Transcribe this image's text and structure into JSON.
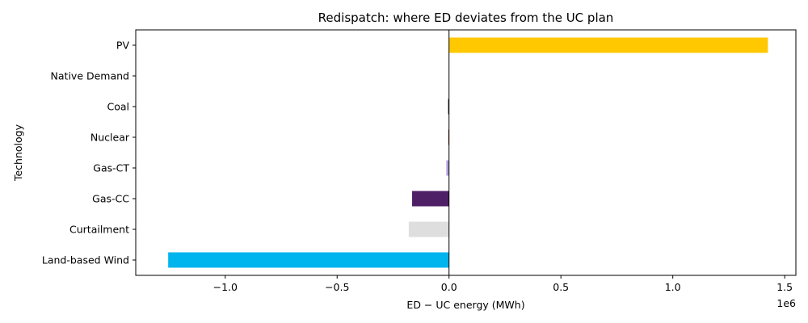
{
  "chart_data": {
    "type": "bar",
    "orientation": "horizontal",
    "title": "Redispatch: where ED deviates from the UC plan",
    "xlabel": "ED − UC energy (MWh)",
    "ylabel": "Technology",
    "x_scale_label": "1e6",
    "xlim": [
      -1.4,
      1.55
    ],
    "x_ticks": [
      -1.0,
      -0.5,
      0.0,
      0.5,
      1.0,
      1.5
    ],
    "x_tick_labels": [
      "−1.0",
      "−0.5",
      "0.0",
      "0.5",
      "1.0",
      "1.5"
    ],
    "grid": false,
    "categories": [
      "PV",
      "Native Demand",
      "Coal",
      "Nuclear",
      "Gas-CT",
      "Gas-CC",
      "Curtailment",
      "Land-based Wind"
    ],
    "values": [
      1.425,
      0.0,
      -0.004,
      -0.003,
      -0.012,
      -0.165,
      -0.18,
      -1.255
    ],
    "colors": [
      "#FFC800",
      "#1f77b4",
      "#111111",
      "#8B0000",
      "#B39DDB",
      "#4F1F66",
      "#DEDEDE",
      "#00B4EE"
    ]
  }
}
